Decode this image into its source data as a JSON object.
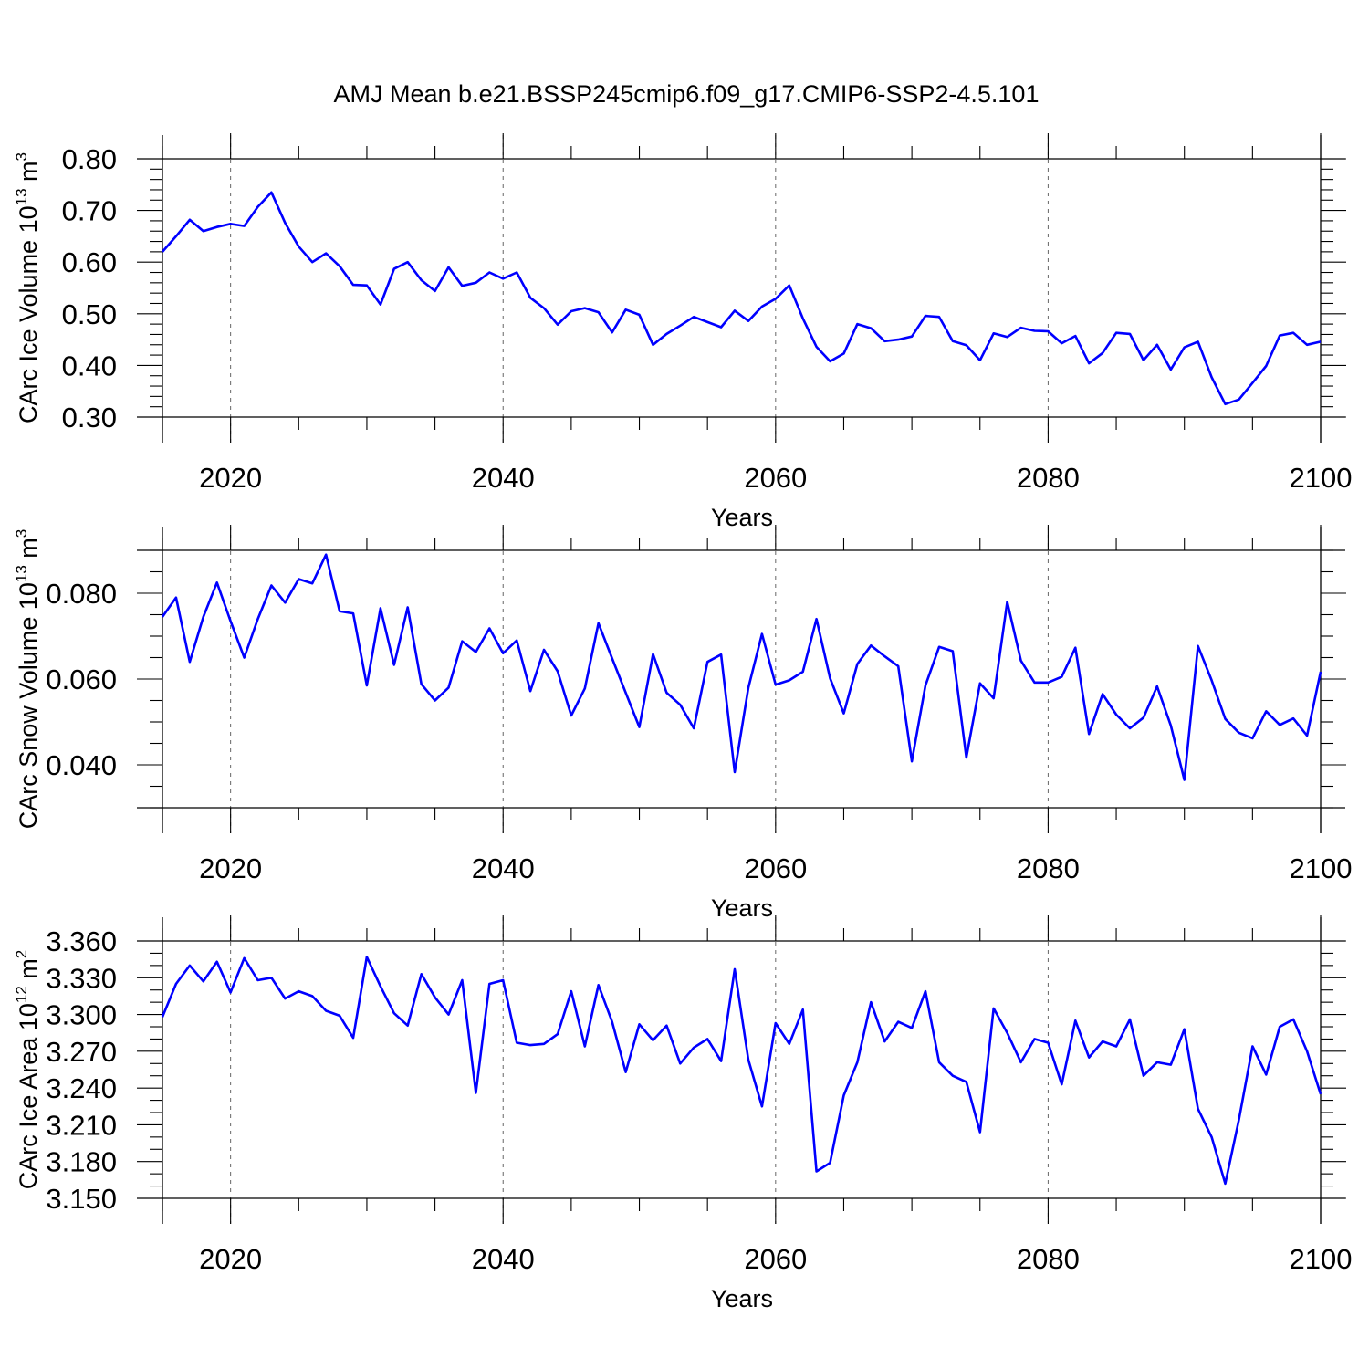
{
  "title": "AMJ Mean b.e21.BSSP245cmip6.f09_g17.CMIP6-SSP2-4.5.101",
  "colors": {
    "series": "#0000ff",
    "axes": "#000000",
    "grid": "#666666"
  },
  "chart_data": [
    {
      "type": "line",
      "ylabel": "CArc Ice Volume 10",
      "ylabel_sup": "13",
      "ylabel_unit": " m",
      "ylabel_unit_sup": "3",
      "xlabel": "Years",
      "xlim": [
        2015,
        2100
      ],
      "ylim": [
        0.3,
        0.8
      ],
      "xticks": [
        2020,
        2040,
        2060,
        2080,
        2100
      ],
      "yticks": [
        0.3,
        0.4,
        0.5,
        0.6,
        0.7,
        0.8
      ],
      "ytick_labels": [
        "0.30",
        "0.40",
        "0.50",
        "0.60",
        "0.70",
        "0.80"
      ],
      "yminor": 0.02,
      "series": [
        {
          "name": "CArc Ice Volume",
          "x_start": 2015,
          "values": [
            0.62,
            0.65,
            0.682,
            0.66,
            0.668,
            0.674,
            0.67,
            0.707,
            0.735,
            0.676,
            0.63,
            0.6,
            0.617,
            0.592,
            0.556,
            0.555,
            0.518,
            0.587,
            0.6,
            0.565,
            0.544,
            0.59,
            0.554,
            0.56,
            0.58,
            0.568,
            0.58,
            0.531,
            0.511,
            0.479,
            0.505,
            0.511,
            0.503,
            0.464,
            0.508,
            0.498,
            0.44,
            0.461,
            0.477,
            0.494,
            0.484,
            0.474,
            0.506,
            0.486,
            0.514,
            0.529,
            0.555,
            0.491,
            0.436,
            0.408,
            0.423,
            0.48,
            0.472,
            0.447,
            0.45,
            0.456,
            0.496,
            0.494,
            0.447,
            0.439,
            0.41,
            0.462,
            0.455,
            0.473,
            0.467,
            0.466,
            0.443,
            0.457,
            0.404,
            0.424,
            0.463,
            0.461,
            0.41,
            0.44,
            0.392,
            0.435,
            0.446,
            0.377,
            0.325,
            0.334,
            0.366,
            0.399,
            0.458,
            0.463,
            0.44,
            0.446
          ]
        }
      ]
    },
    {
      "type": "line",
      "ylabel": "CArc Snow Volume 10",
      "ylabel_sup": "13",
      "ylabel_unit": " m",
      "ylabel_unit_sup": "3",
      "xlabel": "Years",
      "xlim": [
        2015,
        2100
      ],
      "ylim": [
        0.03,
        0.09
      ],
      "xticks": [
        2020,
        2040,
        2060,
        2080,
        2100
      ],
      "yticks": [
        0.04,
        0.06,
        0.08
      ],
      "ytick_labels": [
        "0.040",
        "0.060",
        "0.080"
      ],
      "yminor": 0.005,
      "series": [
        {
          "name": "CArc Snow Volume",
          "x_start": 2015,
          "values": [
            0.0745,
            0.079,
            0.064,
            0.0745,
            0.0825,
            0.0735,
            0.065,
            0.074,
            0.0818,
            0.0778,
            0.0833,
            0.0823,
            0.089,
            0.0758,
            0.0753,
            0.0585,
            0.0765,
            0.0633,
            0.0767,
            0.0588,
            0.055,
            0.058,
            0.0688,
            0.0663,
            0.0718,
            0.066,
            0.069,
            0.0572,
            0.0668,
            0.0618,
            0.0515,
            0.0578,
            0.073,
            0.0648,
            0.0568,
            0.0488,
            0.0658,
            0.0568,
            0.054,
            0.0485,
            0.064,
            0.0657,
            0.0383,
            0.058,
            0.0705,
            0.0587,
            0.0597,
            0.0617,
            0.074,
            0.0602,
            0.052,
            0.0635,
            0.0678,
            0.0653,
            0.063,
            0.0408,
            0.0585,
            0.0675,
            0.0665,
            0.0417,
            0.059,
            0.0555,
            0.078,
            0.0643,
            0.0592,
            0.0592,
            0.0605,
            0.0673,
            0.0472,
            0.0565,
            0.0517,
            0.0485,
            0.051,
            0.0583,
            0.0492,
            0.0365,
            0.0677,
            0.0597,
            0.0507,
            0.0475,
            0.0462,
            0.0525,
            0.0493,
            0.0508,
            0.0468,
            0.0617
          ]
        }
      ]
    },
    {
      "type": "line",
      "ylabel": "CArc Ice Area 10",
      "ylabel_sup": "12",
      "ylabel_unit": " m",
      "ylabel_unit_sup": "2",
      "xlabel": "Years",
      "xlim": [
        2015,
        2100
      ],
      "ylim": [
        3.15,
        3.36
      ],
      "xticks": [
        2020,
        2040,
        2060,
        2080,
        2100
      ],
      "yticks": [
        3.15,
        3.18,
        3.21,
        3.24,
        3.27,
        3.3,
        3.33,
        3.36
      ],
      "ytick_labels": [
        "3.150",
        "3.180",
        "3.210",
        "3.240",
        "3.270",
        "3.300",
        "3.330",
        "3.360"
      ],
      "yminor": 0.01,
      "series": [
        {
          "name": "CArc Ice Area",
          "x_start": 2015,
          "values": [
            3.298,
            3.325,
            3.34,
            3.327,
            3.343,
            3.318,
            3.346,
            3.328,
            3.33,
            3.313,
            3.319,
            3.315,
            3.303,
            3.299,
            3.281,
            3.347,
            3.323,
            3.301,
            3.291,
            3.333,
            3.314,
            3.3,
            3.328,
            3.236,
            3.325,
            3.328,
            3.277,
            3.275,
            3.276,
            3.284,
            3.319,
            3.274,
            3.324,
            3.294,
            3.253,
            3.292,
            3.279,
            3.291,
            3.26,
            3.273,
            3.28,
            3.262,
            3.337,
            3.263,
            3.225,
            3.293,
            3.276,
            3.304,
            3.172,
            3.179,
            3.234,
            3.261,
            3.31,
            3.278,
            3.294,
            3.289,
            3.319,
            3.261,
            3.25,
            3.245,
            3.204,
            3.305,
            3.285,
            3.261,
            3.28,
            3.277,
            3.243,
            3.295,
            3.265,
            3.278,
            3.274,
            3.296,
            3.25,
            3.261,
            3.259,
            3.288,
            3.223,
            3.2,
            3.162,
            3.214,
            3.274,
            3.251,
            3.29,
            3.296,
            3.27,
            3.235
          ]
        }
      ]
    }
  ]
}
